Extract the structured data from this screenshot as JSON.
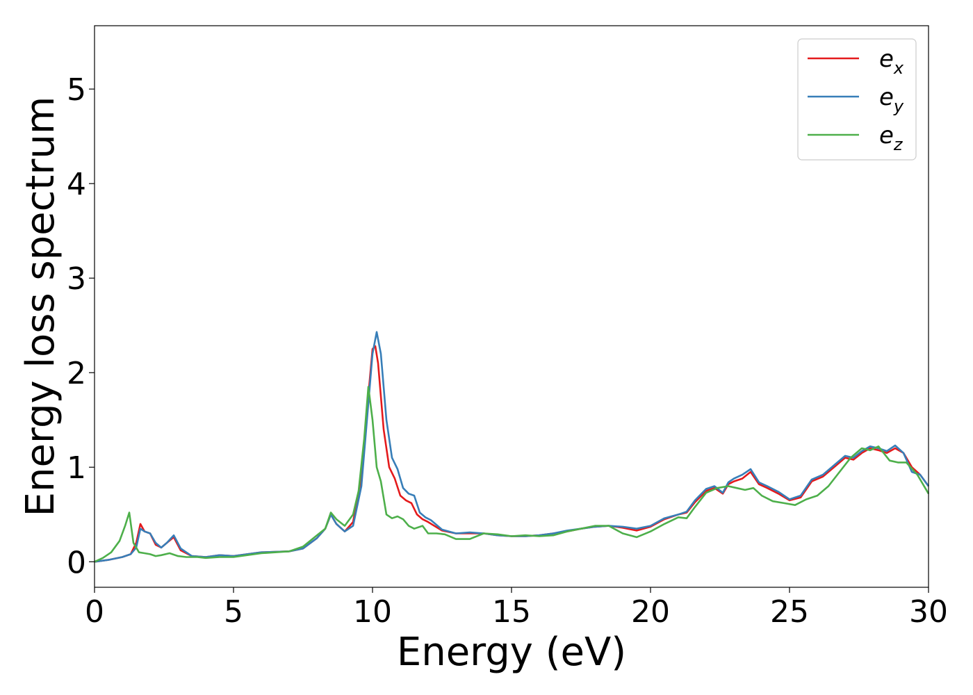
{
  "chart_data": {
    "type": "line",
    "xlabel": "Energy (eV)",
    "ylabel": "Energy loss spectrum",
    "xlim": [
      0,
      30
    ],
    "ylim": [
      -0.27,
      5.67
    ],
    "xticks": [
      0,
      5,
      10,
      15,
      20,
      25,
      30
    ],
    "yticks": [
      0,
      1,
      2,
      3,
      4,
      5
    ],
    "grid": false,
    "legend_position": "top-right",
    "series": [
      {
        "name": "e",
        "sub": "x",
        "color": "#e41a1c",
        "x": [
          0,
          0.5,
          1.0,
          1.3,
          1.5,
          1.65,
          1.8,
          2.0,
          2.2,
          2.4,
          2.6,
          2.85,
          3.1,
          3.5,
          4.0,
          4.5,
          5.0,
          6.0,
          7.0,
          7.5,
          8.0,
          8.3,
          8.5,
          8.7,
          9.0,
          9.3,
          9.6,
          9.8,
          10.0,
          10.1,
          10.2,
          10.4,
          10.6,
          10.8,
          11.0,
          11.2,
          11.4,
          11.6,
          11.8,
          12.0,
          12.5,
          13.0,
          13.5,
          14.0,
          14.5,
          15.0,
          15.5,
          16.0,
          16.5,
          17.0,
          17.5,
          18.0,
          18.5,
          19.0,
          19.5,
          20.0,
          20.5,
          21.0,
          21.3,
          21.6,
          22.0,
          22.3,
          22.6,
          22.8,
          23.0,
          23.3,
          23.6,
          23.9,
          24.2,
          24.6,
          25.0,
          25.4,
          25.8,
          26.2,
          26.6,
          27.0,
          27.3,
          27.6,
          27.9,
          28.2,
          28.5,
          28.8,
          29.1,
          29.4,
          29.7,
          30.0
        ],
        "y": [
          0,
          0.02,
          0.05,
          0.08,
          0.2,
          0.4,
          0.32,
          0.3,
          0.18,
          0.15,
          0.2,
          0.26,
          0.12,
          0.06,
          0.05,
          0.07,
          0.06,
          0.1,
          0.11,
          0.14,
          0.25,
          0.35,
          0.5,
          0.4,
          0.32,
          0.42,
          0.9,
          1.6,
          2.25,
          2.28,
          2.1,
          1.4,
          1.0,
          0.88,
          0.7,
          0.65,
          0.62,
          0.5,
          0.45,
          0.42,
          0.33,
          0.3,
          0.3,
          0.3,
          0.28,
          0.27,
          0.27,
          0.28,
          0.3,
          0.32,
          0.35,
          0.37,
          0.38,
          0.36,
          0.33,
          0.37,
          0.45,
          0.5,
          0.52,
          0.63,
          0.75,
          0.78,
          0.72,
          0.82,
          0.85,
          0.88,
          0.95,
          0.82,
          0.78,
          0.72,
          0.65,
          0.68,
          0.85,
          0.9,
          1.0,
          1.1,
          1.08,
          1.15,
          1.2,
          1.18,
          1.15,
          1.2,
          1.15,
          1.0,
          0.92,
          0.8
        ]
      },
      {
        "name": "e",
        "sub": "y",
        "color": "#377eb8",
        "x": [
          0,
          0.5,
          1.0,
          1.3,
          1.5,
          1.65,
          1.8,
          2.0,
          2.2,
          2.4,
          2.6,
          2.85,
          3.1,
          3.5,
          4.0,
          4.5,
          5.0,
          6.0,
          7.0,
          7.5,
          8.0,
          8.3,
          8.5,
          8.7,
          9.0,
          9.3,
          9.6,
          9.8,
          10.0,
          10.15,
          10.3,
          10.5,
          10.7,
          10.9,
          11.1,
          11.3,
          11.5,
          11.7,
          11.9,
          12.1,
          12.5,
          13.0,
          13.5,
          14.0,
          14.5,
          15.0,
          15.5,
          16.0,
          16.5,
          17.0,
          17.5,
          18.0,
          18.5,
          19.0,
          19.5,
          20.0,
          20.5,
          21.0,
          21.3,
          21.6,
          22.0,
          22.3,
          22.6,
          22.8,
          23.0,
          23.3,
          23.6,
          23.9,
          24.2,
          24.6,
          25.0,
          25.4,
          25.8,
          26.2,
          26.6,
          27.0,
          27.3,
          27.6,
          27.9,
          28.2,
          28.5,
          28.8,
          29.1,
          29.4,
          29.7,
          30.0
        ],
        "y": [
          0,
          0.02,
          0.05,
          0.08,
          0.15,
          0.35,
          0.32,
          0.3,
          0.2,
          0.15,
          0.2,
          0.28,
          0.14,
          0.06,
          0.05,
          0.07,
          0.06,
          0.1,
          0.11,
          0.14,
          0.25,
          0.35,
          0.5,
          0.4,
          0.32,
          0.38,
          0.8,
          1.5,
          2.2,
          2.43,
          2.2,
          1.5,
          1.1,
          0.98,
          0.78,
          0.72,
          0.7,
          0.52,
          0.47,
          0.44,
          0.34,
          0.3,
          0.31,
          0.3,
          0.28,
          0.27,
          0.27,
          0.28,
          0.3,
          0.33,
          0.35,
          0.37,
          0.38,
          0.37,
          0.35,
          0.38,
          0.46,
          0.5,
          0.53,
          0.65,
          0.77,
          0.8,
          0.73,
          0.84,
          0.88,
          0.92,
          0.98,
          0.84,
          0.8,
          0.74,
          0.66,
          0.7,
          0.87,
          0.92,
          1.02,
          1.12,
          1.1,
          1.17,
          1.22,
          1.2,
          1.17,
          1.23,
          1.15,
          0.95,
          0.92,
          0.8
        ]
      },
      {
        "name": "e",
        "sub": "z",
        "color": "#4daf4a",
        "x": [
          0,
          0.3,
          0.6,
          0.9,
          1.1,
          1.25,
          1.4,
          1.6,
          1.8,
          2.0,
          2.2,
          2.4,
          2.7,
          3.0,
          3.3,
          3.7,
          4.0,
          4.5,
          5.0,
          6.0,
          7.0,
          7.5,
          8.0,
          8.3,
          8.5,
          8.7,
          9.0,
          9.3,
          9.5,
          9.7,
          9.85,
          10.0,
          10.15,
          10.3,
          10.5,
          10.7,
          10.9,
          11.1,
          11.3,
          11.5,
          11.8,
          12.0,
          12.3,
          12.6,
          13.0,
          13.5,
          14.0,
          14.5,
          15.0,
          15.5,
          16.0,
          16.5,
          17.0,
          17.5,
          18.0,
          18.5,
          19.0,
          19.5,
          20.0,
          20.5,
          21.0,
          21.3,
          21.6,
          22.0,
          22.4,
          22.8,
          23.1,
          23.4,
          23.7,
          24.0,
          24.4,
          24.8,
          25.2,
          25.6,
          26.0,
          26.4,
          26.8,
          27.2,
          27.6,
          27.9,
          28.2,
          28.6,
          28.9,
          29.2,
          29.6,
          30.0
        ],
        "y": [
          0,
          0.04,
          0.1,
          0.22,
          0.38,
          0.52,
          0.2,
          0.1,
          0.09,
          0.08,
          0.06,
          0.07,
          0.09,
          0.06,
          0.05,
          0.05,
          0.04,
          0.05,
          0.05,
          0.09,
          0.11,
          0.16,
          0.28,
          0.35,
          0.52,
          0.45,
          0.38,
          0.5,
          0.75,
          1.3,
          1.85,
          1.5,
          1.0,
          0.85,
          0.5,
          0.46,
          0.48,
          0.45,
          0.38,
          0.35,
          0.38,
          0.3,
          0.3,
          0.29,
          0.24,
          0.24,
          0.3,
          0.29,
          0.27,
          0.28,
          0.27,
          0.28,
          0.32,
          0.35,
          0.38,
          0.38,
          0.3,
          0.26,
          0.32,
          0.4,
          0.47,
          0.46,
          0.58,
          0.73,
          0.78,
          0.8,
          0.78,
          0.76,
          0.78,
          0.7,
          0.64,
          0.62,
          0.6,
          0.66,
          0.7,
          0.8,
          0.95,
          1.1,
          1.2,
          1.18,
          1.22,
          1.07,
          1.05,
          1.05,
          0.92,
          0.72
        ]
      }
    ]
  }
}
